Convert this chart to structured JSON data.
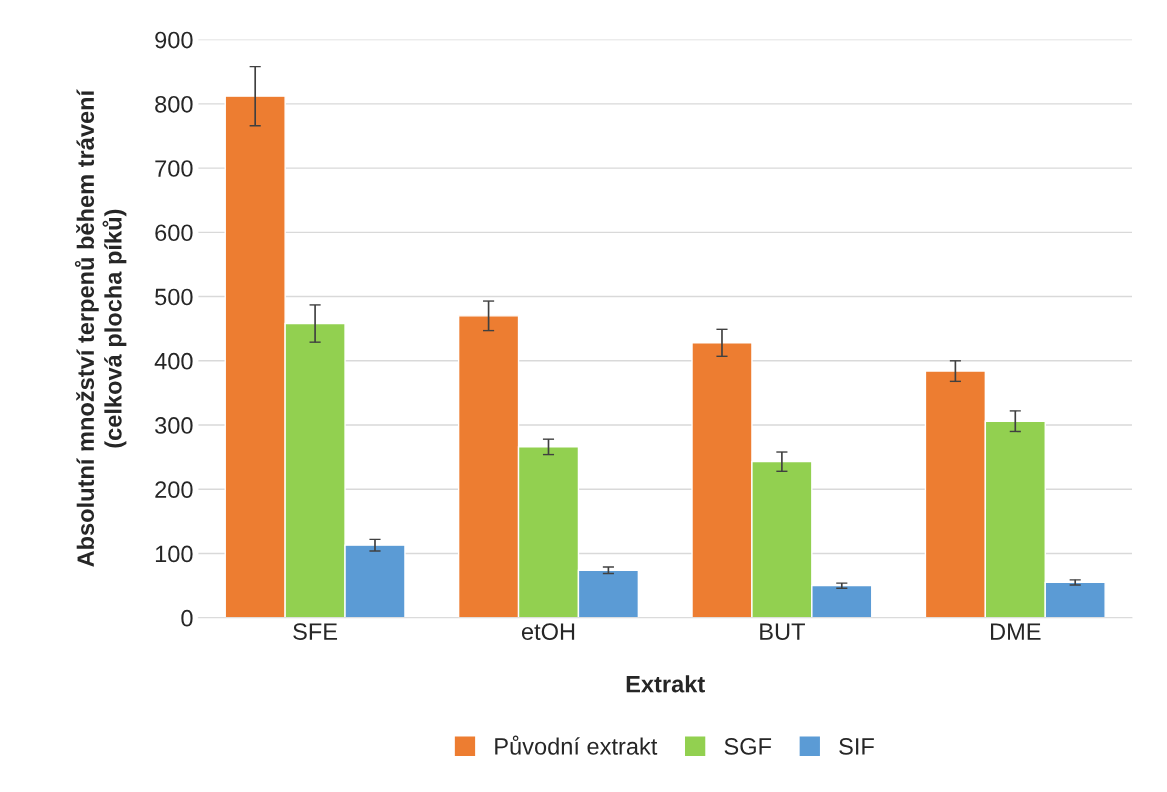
{
  "chart_data": {
    "type": "bar",
    "xlabel": "Extrakt",
    "ylabel": "Absolutní množství terpenů během trávení\n(celková plocha píků)",
    "categories": [
      "SFE",
      "etOH",
      "BUT",
      "DME"
    ],
    "series": [
      {
        "name": "Původní extrakt",
        "color": "#ed7d31",
        "values": [
          812,
          470,
          428,
          384
        ],
        "errors": [
          46,
          23,
          21,
          16
        ]
      },
      {
        "name": "SGF",
        "color": "#92d050",
        "values": [
          458,
          266,
          243,
          306
        ],
        "errors": [
          29,
          12,
          15,
          16
        ]
      },
      {
        "name": "SIF",
        "color": "#5b9bd5",
        "values": [
          113,
          74,
          50,
          55
        ],
        "errors": [
          9,
          5,
          4,
          4
        ]
      }
    ],
    "ylim": [
      0,
      900
    ],
    "yticks": [
      0,
      100,
      200,
      300,
      400,
      500,
      600,
      700,
      800,
      900
    ],
    "grid": "y",
    "legend": "bottom"
  }
}
